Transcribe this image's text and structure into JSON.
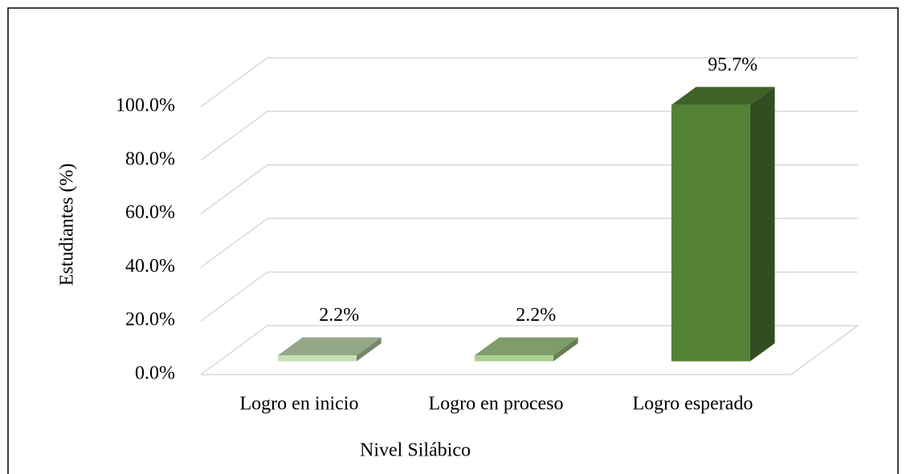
{
  "chart_data": {
    "type": "bar3d",
    "categories": [
      "Logro en inicio",
      "Logro en proceso",
      "Logro esperado"
    ],
    "values": [
      2.2,
      2.2,
      95.7
    ],
    "value_labels": [
      "2.2%",
      "2.2%",
      "95.7%"
    ],
    "colors": [
      "#c5e0b4",
      "#a9d18e",
      "#548235"
    ],
    "ylim": [
      0,
      100
    ],
    "yticks": [
      {
        "value": 0,
        "label": "0.0%"
      },
      {
        "value": 20,
        "label": "20.0%"
      },
      {
        "value": 40,
        "label": "40.0%"
      },
      {
        "value": 60,
        "label": "60.0%"
      },
      {
        "value": 80,
        "label": "80.0%"
      },
      {
        "value": 100,
        "label": "100.0%"
      }
    ],
    "ylabel": "Estudiantes (%)",
    "xlabel": "Nivel Silábico",
    "grid": true
  }
}
